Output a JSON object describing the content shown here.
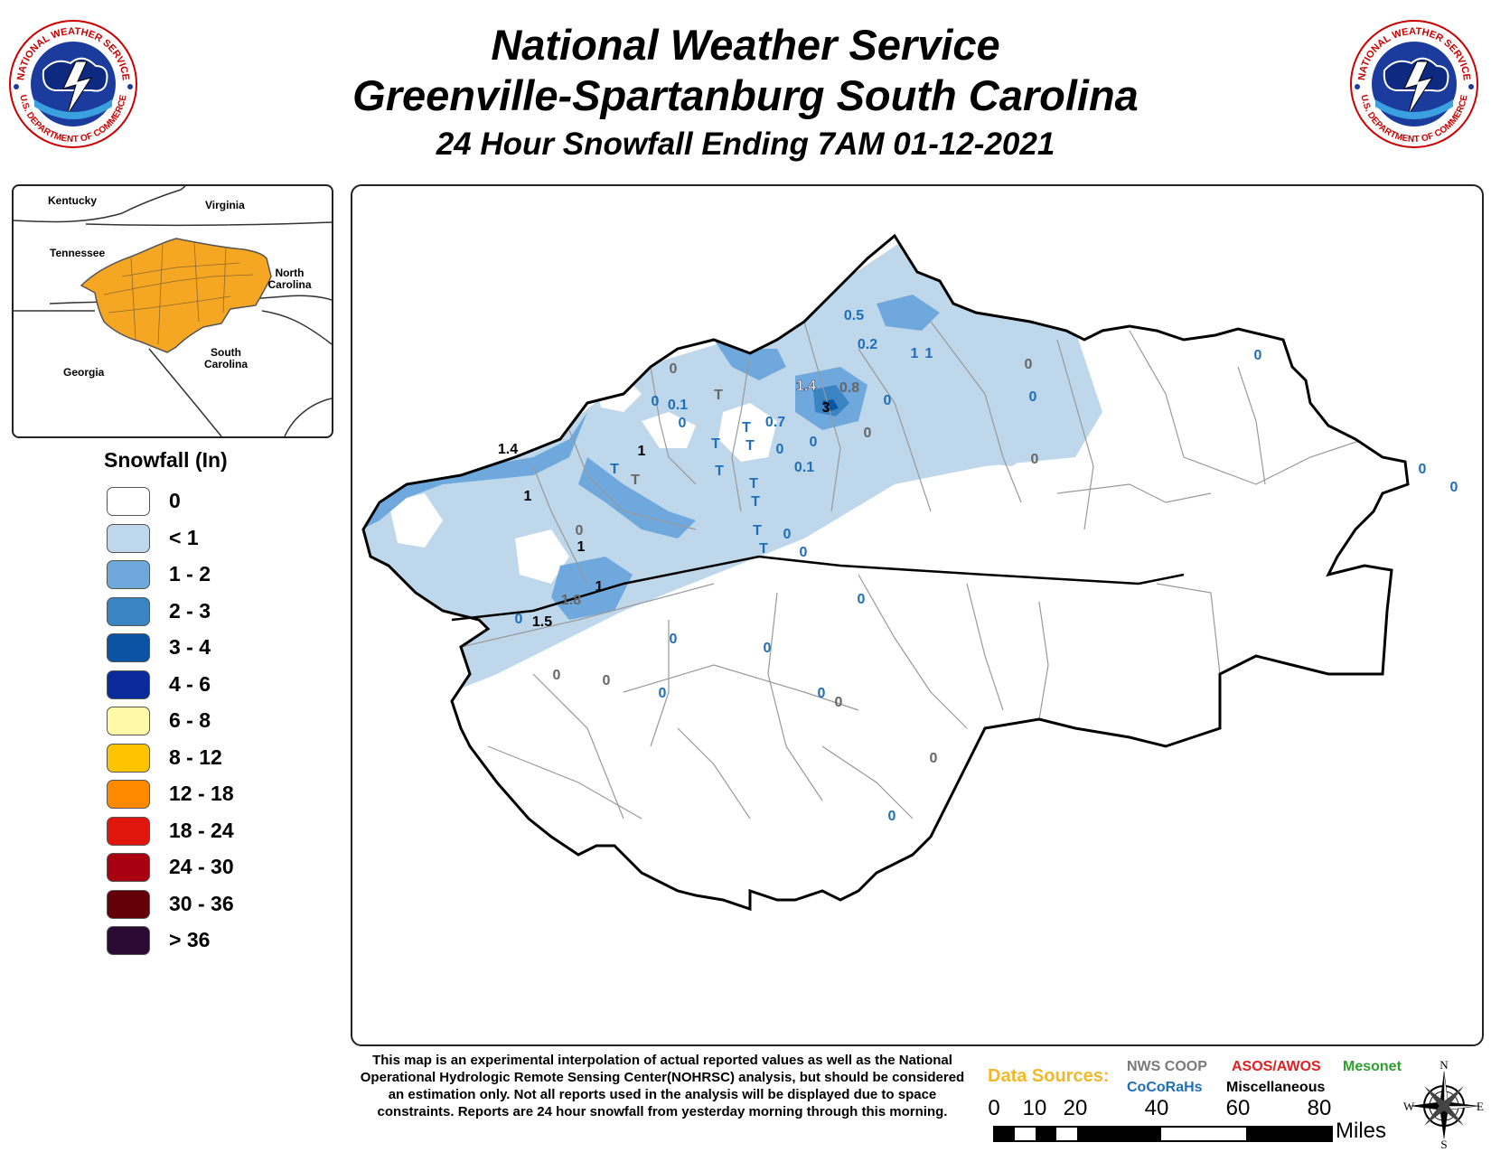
{
  "header": {
    "title_line1": "National Weather Service",
    "title_line2": "Greenville-Spartanburg South Carolina",
    "subtitle": "24 Hour Snowfall Ending 7AM 01-12-2021"
  },
  "logo": {
    "text_top": "NATIONAL WEATHER SERVICE",
    "text_bottom": "U.S. DEPARTMENT OF COMMERCE",
    "icon": "nws-logo-icon"
  },
  "inset": {
    "labels": {
      "kentucky": "Kentucky",
      "virginia": "Virginia",
      "tennessee": "Tennessee",
      "north_carolina": "North Carolina",
      "south_carolina": "South Carolina",
      "georgia": "Georgia"
    },
    "highlight_color": "#f5a623"
  },
  "legend": {
    "title": "Snowfall (In)",
    "items": [
      {
        "label": "0",
        "color": "#ffffff"
      },
      {
        "label": "< 1",
        "color": "#bed7ea"
      },
      {
        "label": "1 - 2",
        "color": "#6fa8dc"
      },
      {
        "label": "2 - 3",
        "color": "#3b84c4"
      },
      {
        "label": "3 - 4",
        "color": "#0b54a4"
      },
      {
        "label": "4 - 6",
        "color": "#0a2a9c"
      },
      {
        "label": "6 - 8",
        "color": "#fff9a8"
      },
      {
        "label": "8 - 12",
        "color": "#ffc400"
      },
      {
        "label": "12 - 18",
        "color": "#ff8a00"
      },
      {
        "label": "18 - 24",
        "color": "#e0160c"
      },
      {
        "label": "24 - 30",
        "color": "#a80010"
      },
      {
        "label": "30 - 36",
        "color": "#640008"
      },
      {
        "label": "> 36",
        "color": "#2a0a32"
      }
    ]
  },
  "map": {
    "reports": [
      {
        "v": "0.5",
        "c": "blue"
      },
      {
        "v": "0.2",
        "c": "blue"
      },
      {
        "v": "1",
        "c": "blue"
      },
      {
        "v": "1",
        "c": "blue"
      },
      {
        "v": "0",
        "c": "gray"
      },
      {
        "v": "0",
        "c": "blue"
      },
      {
        "v": "0",
        "c": "blue"
      },
      {
        "v": "1.4",
        "c": "white"
      },
      {
        "v": "0.8",
        "c": "gray"
      },
      {
        "v": "3",
        "c": "black"
      },
      {
        "v": "0",
        "c": "blue"
      },
      {
        "v": "0",
        "c": "gray"
      },
      {
        "v": "0",
        "c": "gray"
      },
      {
        "v": "0",
        "c": "blue"
      },
      {
        "v": "0.1",
        "c": "blue"
      },
      {
        "v": "0",
        "c": "blue"
      },
      {
        "v": "T",
        "c": "gray"
      },
      {
        "v": "T",
        "c": "blue"
      },
      {
        "v": "0.7",
        "c": "blue"
      },
      {
        "v": "T",
        "c": "blue"
      },
      {
        "v": "T",
        "c": "blue"
      },
      {
        "v": "0",
        "c": "blue"
      },
      {
        "v": "0",
        "c": "blue"
      },
      {
        "v": "0.1",
        "c": "blue"
      },
      {
        "v": "1.4",
        "c": "black"
      },
      {
        "v": "1",
        "c": "black"
      },
      {
        "v": "T",
        "c": "blue"
      },
      {
        "v": "T",
        "c": "gray"
      },
      {
        "v": "T",
        "c": "blue"
      },
      {
        "v": "T",
        "c": "blue"
      },
      {
        "v": "T",
        "c": "blue"
      },
      {
        "v": "1",
        "c": "black"
      },
      {
        "v": "0",
        "c": "gray"
      },
      {
        "v": "1",
        "c": "black"
      },
      {
        "v": "T",
        "c": "blue"
      },
      {
        "v": "0",
        "c": "blue"
      },
      {
        "v": "T",
        "c": "blue"
      },
      {
        "v": "0",
        "c": "blue"
      },
      {
        "v": "1",
        "c": "black"
      },
      {
        "v": "1.8",
        "c": "gray"
      },
      {
        "v": "0",
        "c": "blue"
      },
      {
        "v": "1.5",
        "c": "black"
      },
      {
        "v": "0",
        "c": "gray"
      },
      {
        "v": "0",
        "c": "gray"
      },
      {
        "v": "0",
        "c": "blue"
      },
      {
        "v": "0",
        "c": "blue"
      },
      {
        "v": "0",
        "c": "blue"
      },
      {
        "v": "0",
        "c": "blue"
      },
      {
        "v": "0",
        "c": "blue"
      },
      {
        "v": "0",
        "c": "gray"
      },
      {
        "v": "0",
        "c": "gray"
      },
      {
        "v": "0",
        "c": "blue"
      },
      {
        "v": "0",
        "c": "gray"
      },
      {
        "v": "0",
        "c": "gray"
      },
      {
        "v": "0",
        "c": "blue"
      },
      {
        "v": "0",
        "c": "blue"
      },
      {
        "v": "0",
        "c": "blue"
      },
      {
        "v": "0",
        "c": "gray"
      }
    ],
    "colors": {
      "blue": "#1f6fb8",
      "gray": "#666666",
      "black": "#000000",
      "white": "#ffffff"
    }
  },
  "footer": {
    "disclaimer": "This map is an experimental interpolation of actual reported values as well as the National Operational Hydrologic Remote Sensing Center(NOHRSC) analysis, but should be considered an estimation only. Not all reports used in the analysis will be displayed due to space constraints. Reports are 24 hour snowfall from yesterday morning through this morning.",
    "data_sources_label": "Data Sources:",
    "sources": [
      {
        "name": "NWS COOP",
        "color": "#7a7a7a"
      },
      {
        "name": "ASOS/AWOS",
        "color": "#e02020"
      },
      {
        "name": "Mesonet",
        "color": "#2e9e2e"
      },
      {
        "name": "CoCoRaHs",
        "color": "#1f6fb8"
      },
      {
        "name": "Miscellaneous",
        "color": "#000000"
      }
    ],
    "scale_ticks": [
      "0",
      "10",
      "20",
      "40",
      "60",
      "80"
    ],
    "scale_unit": "Miles",
    "compass": {
      "n": "N",
      "s": "S",
      "e": "E",
      "w": "W"
    }
  }
}
